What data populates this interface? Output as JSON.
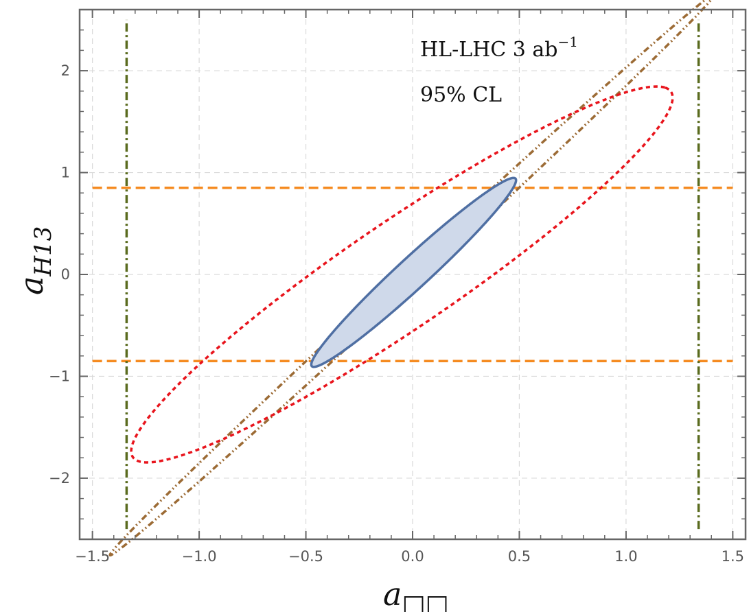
{
  "chart_data": {
    "type": "contour",
    "xlim": [
      -1.56,
      1.56
    ],
    "ylim": [
      -2.6,
      2.6
    ],
    "grid": true,
    "xlabel": {
      "main": "a",
      "sub": "□□"
    },
    "ylabel": {
      "main": "a",
      "sub": "H13"
    },
    "annotation": {
      "line1": "HL-LHC 3 ab",
      "line1_sup": "−1",
      "line2": "95% CL"
    },
    "x_ticks": [
      {
        "value": -1.5,
        "label": "−1.5"
      },
      {
        "value": -1.0,
        "label": "−1.0"
      },
      {
        "value": -0.5,
        "label": "−0.5"
      },
      {
        "value": 0.0,
        "label": "0.0"
      },
      {
        "value": 0.5,
        "label": "0.5"
      },
      {
        "value": 1.0,
        "label": "1.0"
      },
      {
        "value": 1.5,
        "label": "1.5"
      }
    ],
    "y_ticks": [
      {
        "value": -2,
        "label": "−2"
      },
      {
        "value": -1,
        "label": "−1"
      },
      {
        "value": 0,
        "label": "0"
      },
      {
        "value": 1,
        "label": "1"
      },
      {
        "value": 2,
        "label": "2"
      }
    ],
    "series": [
      {
        "kind": "hline",
        "values": [
          0.85,
          -0.85
        ],
        "x_range": [
          -1.5,
          1.5
        ],
        "color": "#f58a1f",
        "style": "dashed"
      },
      {
        "kind": "vline",
        "values": [
          -1.34,
          1.34
        ],
        "y_range": [
          -2.5,
          2.5
        ],
        "color": "#5a6b1e",
        "style": "dashdot"
      },
      {
        "kind": "ellipse",
        "center": [
          0.0,
          0.0
        ],
        "radius_major": 3.1,
        "radius_minor": 0.058,
        "angle_deg": 62.8,
        "color": "#9c6b35",
        "style": "dashdotdot",
        "fill": null
      },
      {
        "kind": "ellipse",
        "center": [
          -0.05,
          0.0
        ],
        "radius_major": 2.21,
        "radius_minor": 0.36,
        "angle_deg": 56.1,
        "color": "#e8141c",
        "style": "dotted",
        "fill": null
      },
      {
        "kind": "ellipse",
        "center": [
          0.005,
          0.02
        ],
        "radius_major": 1.04,
        "radius_minor": 0.095,
        "angle_deg": 63.0,
        "color": "#4f6fa3",
        "style": "solid",
        "fill": "#cfd9ea"
      }
    ]
  }
}
